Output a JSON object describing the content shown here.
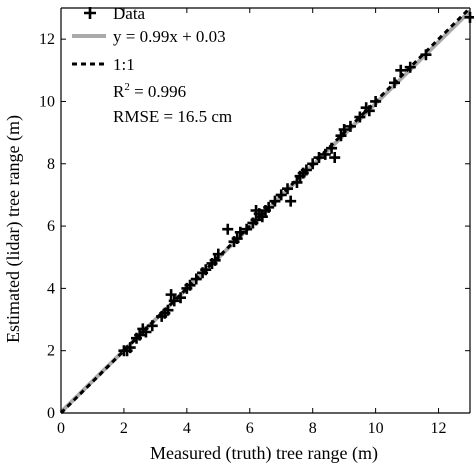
{
  "chart_data": {
    "type": "scatter",
    "xlabel": "Measured (truth) tree range (m)",
    "ylabel": "Estimated (lidar) tree range (m)",
    "xlim": [
      0,
      13
    ],
    "ylim": [
      0,
      13
    ],
    "xticks": [
      0,
      2,
      4,
      6,
      8,
      10,
      12
    ],
    "yticks": [
      0,
      2,
      4,
      6,
      8,
      10,
      12
    ],
    "grid": false,
    "legend_position": "top-left",
    "legend": [
      {
        "label": "Data",
        "kind": "marker"
      },
      {
        "label": "y = 0.99x + 0.03",
        "kind": "line",
        "color": "#aaaaaa"
      },
      {
        "label": "1:1",
        "kind": "dashed",
        "color": "#000000"
      }
    ],
    "annotations": {
      "r2_base": "R",
      "r2_sup": "2",
      "r2_value": " = 0.996",
      "rmse": "RMSE = 16.5 cm"
    },
    "fit": {
      "slope": 0.99,
      "intercept": 0.03
    },
    "series": [
      {
        "points": [
          [
            2.0,
            2.0
          ],
          [
            2.1,
            2.0
          ],
          [
            2.2,
            2.1
          ],
          [
            2.4,
            2.4
          ],
          [
            2.5,
            2.5
          ],
          [
            2.6,
            2.7
          ],
          [
            2.7,
            2.6
          ],
          [
            2.9,
            2.8
          ],
          [
            3.2,
            3.1
          ],
          [
            3.3,
            3.2
          ],
          [
            3.4,
            3.3
          ],
          [
            3.5,
            3.8
          ],
          [
            3.6,
            3.6
          ],
          [
            3.8,
            3.7
          ],
          [
            4.0,
            4.0
          ],
          [
            4.1,
            4.1
          ],
          [
            4.3,
            4.3
          ],
          [
            4.5,
            4.5
          ],
          [
            4.6,
            4.6
          ],
          [
            4.8,
            4.8
          ],
          [
            4.9,
            4.9
          ],
          [
            5.0,
            5.1
          ],
          [
            5.3,
            5.9
          ],
          [
            5.5,
            5.5
          ],
          [
            5.6,
            5.6
          ],
          [
            5.7,
            5.8
          ],
          [
            5.9,
            5.9
          ],
          [
            6.1,
            6.1
          ],
          [
            6.2,
            6.2
          ],
          [
            6.3,
            6.4
          ],
          [
            6.2,
            6.5
          ],
          [
            6.4,
            6.3
          ],
          [
            6.5,
            6.5
          ],
          [
            6.6,
            6.6
          ],
          [
            6.8,
            6.8
          ],
          [
            7.0,
            7.0
          ],
          [
            7.2,
            7.2
          ],
          [
            7.3,
            6.8
          ],
          [
            7.5,
            7.4
          ],
          [
            7.6,
            7.6
          ],
          [
            7.7,
            7.7
          ],
          [
            7.8,
            7.8
          ],
          [
            8.0,
            8.0
          ],
          [
            8.2,
            8.2
          ],
          [
            8.4,
            8.3
          ],
          [
            8.6,
            8.5
          ],
          [
            8.7,
            8.2
          ],
          [
            8.9,
            8.9
          ],
          [
            9.0,
            9.1
          ],
          [
            9.2,
            9.2
          ],
          [
            9.5,
            9.5
          ],
          [
            9.7,
            9.8
          ],
          [
            9.8,
            9.7
          ],
          [
            10.0,
            10.0
          ],
          [
            10.6,
            10.6
          ],
          [
            10.8,
            11.0
          ],
          [
            11.1,
            11.1
          ],
          [
            11.6,
            11.5
          ],
          [
            13.0,
            12.7
          ]
        ]
      }
    ]
  }
}
